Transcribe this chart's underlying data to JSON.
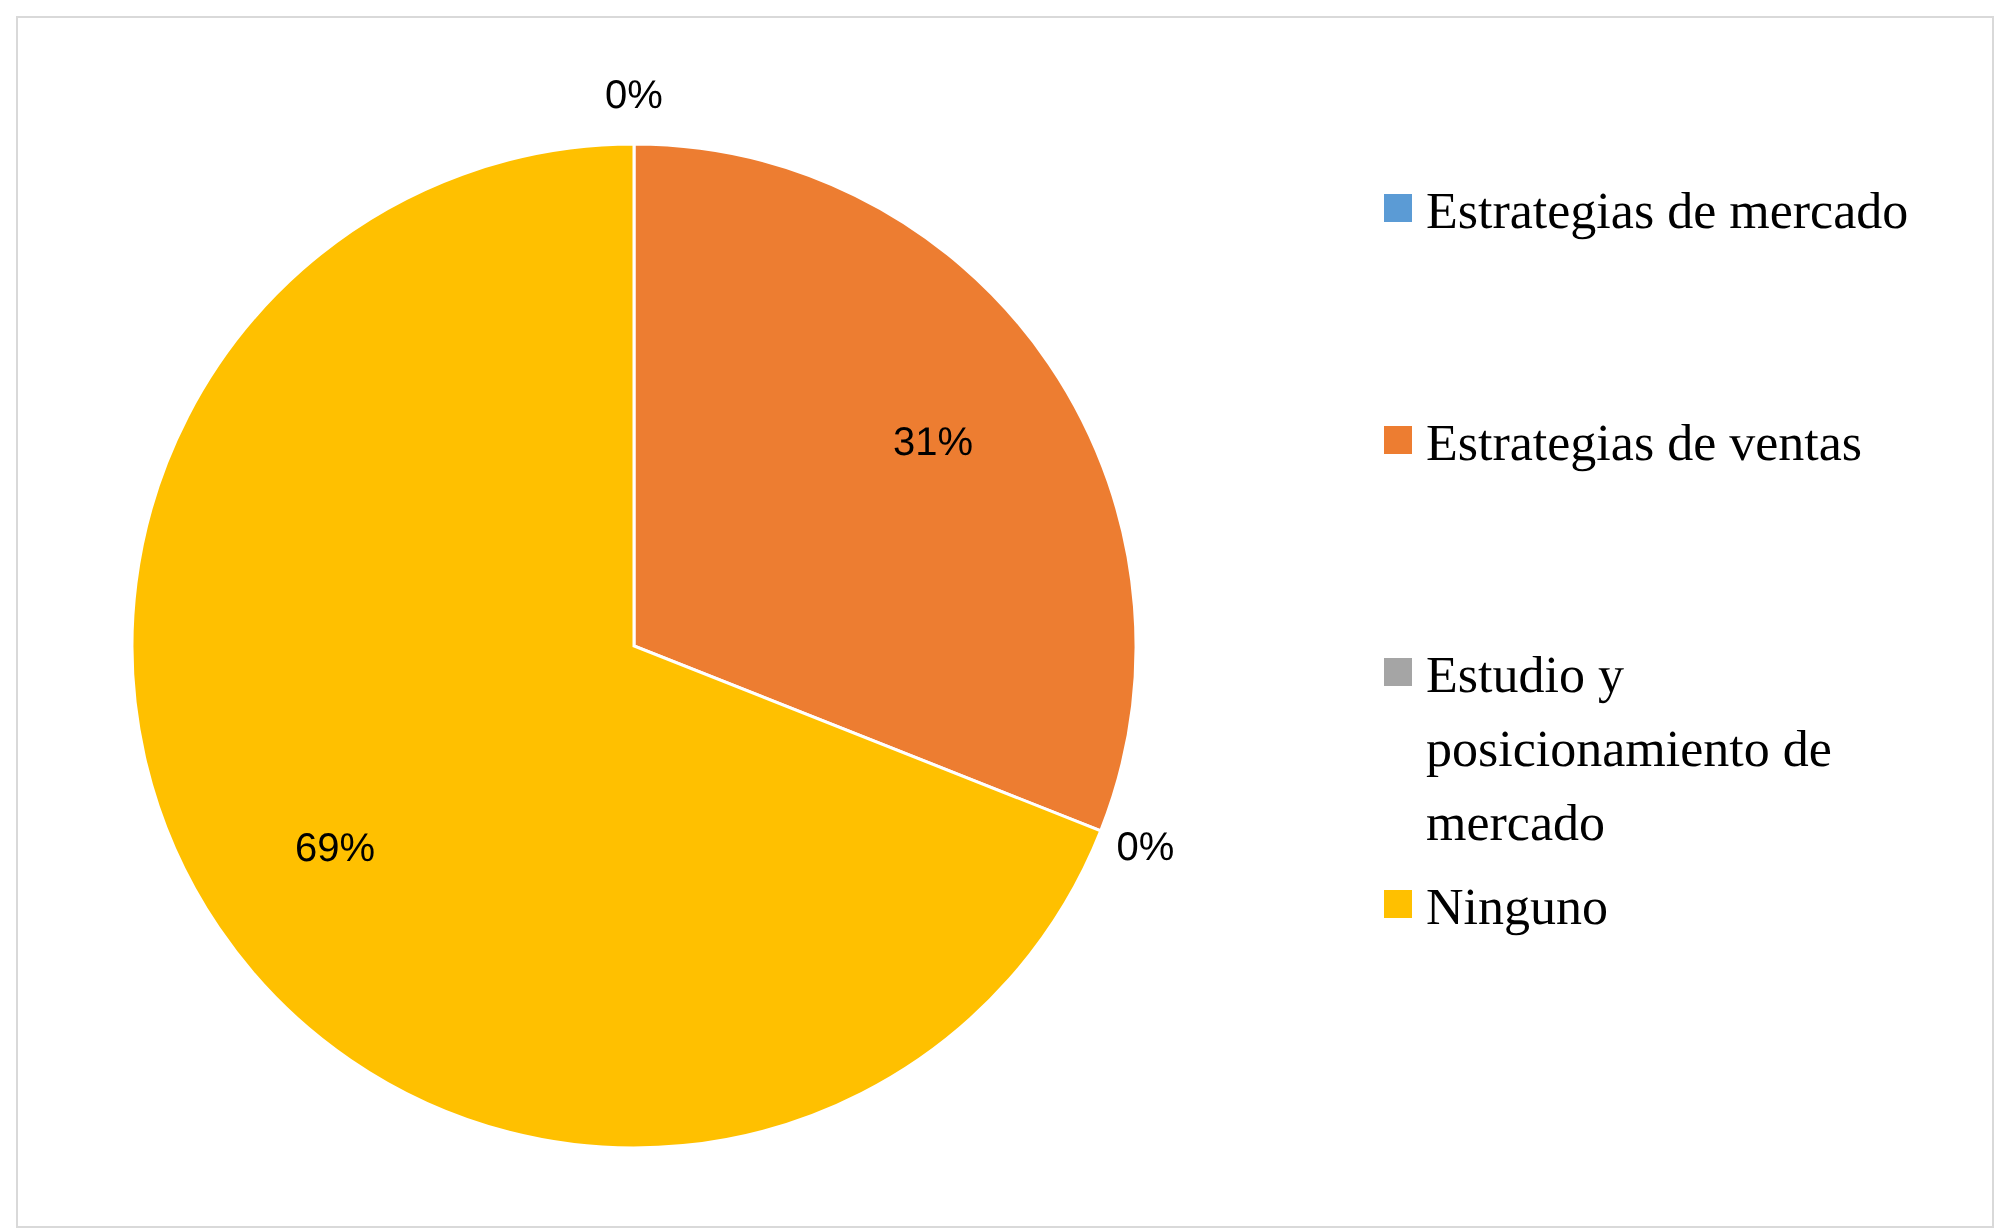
{
  "chart_data": {
    "type": "pie",
    "categories": [
      "Estrategias de mercado",
      "Estrategias de ventas",
      "Estudio y posicionamiento de mercado",
      "Ninguno"
    ],
    "values": [
      0,
      31,
      0,
      69
    ],
    "colors": [
      "#5b9bd5",
      "#ed7d31",
      "#a5a5a5",
      "#ffc000"
    ],
    "value_labels": [
      "0%",
      "31%",
      "0%",
      "69%"
    ],
    "legend": "right"
  }
}
